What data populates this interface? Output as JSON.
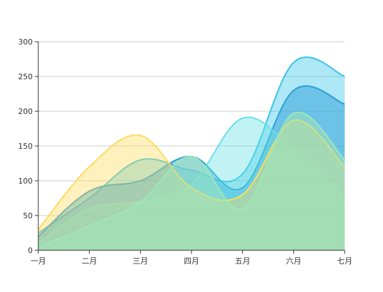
{
  "chart_data": {
    "type": "area",
    "title": "",
    "xlabel": "",
    "ylabel": "",
    "categories": [
      "一月",
      "二月",
      "三月",
      "四月",
      "五月",
      "六月",
      "七月"
    ],
    "ylim": [
      0,
      300
    ],
    "yticks": [
      0,
      50,
      100,
      150,
      200,
      250,
      300
    ],
    "grid": true,
    "smooth": true,
    "series": [
      {
        "color": "#35c4e8",
        "fill_opacity": 0.4,
        "values": [
          25,
          75,
          130,
          115,
          110,
          270,
          250
        ]
      },
      {
        "color": "#2a9fd8",
        "fill_opacity": 0.5,
        "values": [
          20,
          85,
          100,
          135,
          90,
          230,
          210
        ]
      },
      {
        "color": "#67e0e3",
        "fill_opacity": 0.4,
        "values": [
          10,
          60,
          70,
          95,
          190,
          145,
          75
        ]
      },
      {
        "color": "#ffdb5c",
        "fill_opacity": 0.4,
        "values": [
          30,
          120,
          165,
          90,
          80,
          187,
          120
        ]
      },
      {
        "color": "#9fe6b8",
        "fill_opacity": 0.5,
        "values": [
          5,
          35,
          70,
          135,
          60,
          197,
          130
        ]
      }
    ]
  }
}
